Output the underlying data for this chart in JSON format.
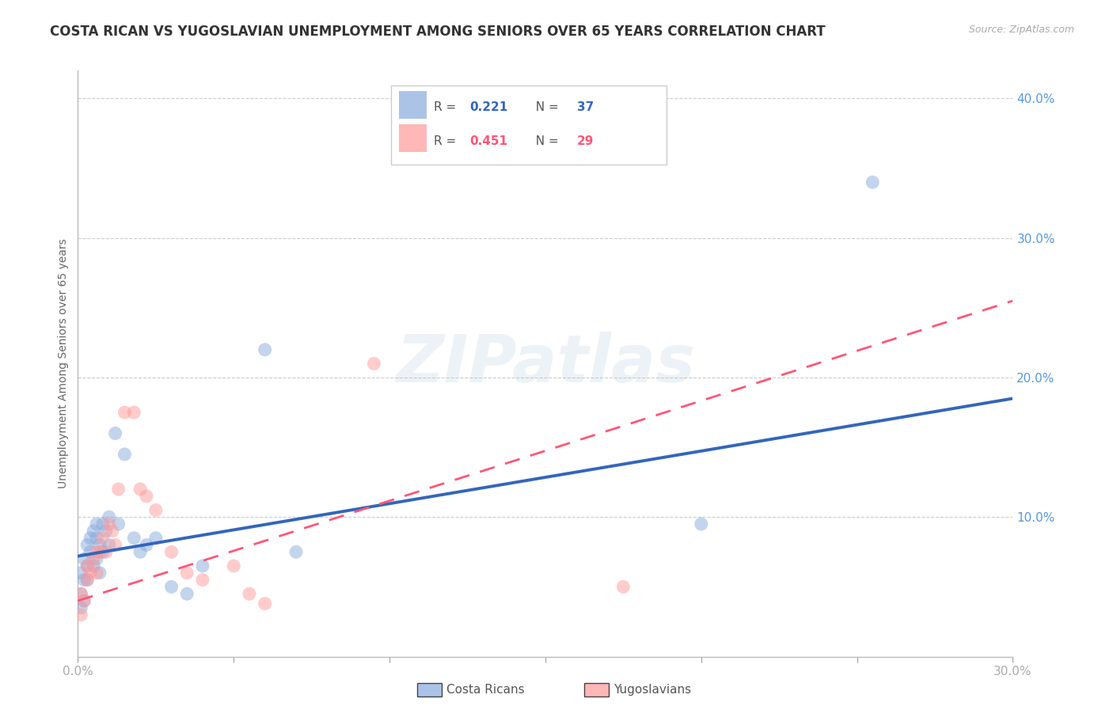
{
  "title": "COSTA RICAN VS YUGOSLAVIAN UNEMPLOYMENT AMONG SENIORS OVER 65 YEARS CORRELATION CHART",
  "source": "Source: ZipAtlas.com",
  "ylabel": "Unemployment Among Seniors over 65 years",
  "xlim": [
    0.0,
    0.3
  ],
  "ylim": [
    0.0,
    0.42
  ],
  "xticks": [
    0.0,
    0.05,
    0.1,
    0.15,
    0.2,
    0.25,
    0.3
  ],
  "yticks": [
    0.0,
    0.1,
    0.2,
    0.3,
    0.4
  ],
  "xtick_labels": [
    "0.0%",
    "",
    "",
    "",
    "",
    "",
    "30.0%"
  ],
  "ytick_labels": [
    "",
    "10.0%",
    "20.0%",
    "30.0%",
    "40.0%"
  ],
  "costa_color": "#88AADD",
  "yugo_color": "#FF9999",
  "trend_costa_color": "#3366BB",
  "trend_yugo_color": "#FF5577",
  "r_costa": "0.221",
  "n_costa": "37",
  "r_yugo": "0.451",
  "n_yugo": "29",
  "costa_ricans_label": "Costa Ricans",
  "yugoslavians_label": "Yugoslavians",
  "costa_x": [
    0.001,
    0.001,
    0.001,
    0.002,
    0.002,
    0.002,
    0.003,
    0.003,
    0.003,
    0.004,
    0.004,
    0.005,
    0.005,
    0.006,
    0.006,
    0.006,
    0.007,
    0.007,
    0.008,
    0.008,
    0.009,
    0.01,
    0.01,
    0.012,
    0.013,
    0.015,
    0.018,
    0.02,
    0.022,
    0.025,
    0.03,
    0.035,
    0.04,
    0.06,
    0.07,
    0.2,
    0.255
  ],
  "costa_y": [
    0.035,
    0.045,
    0.06,
    0.04,
    0.055,
    0.07,
    0.055,
    0.065,
    0.08,
    0.075,
    0.085,
    0.065,
    0.09,
    0.07,
    0.085,
    0.095,
    0.06,
    0.08,
    0.075,
    0.095,
    0.09,
    0.08,
    0.1,
    0.16,
    0.095,
    0.145,
    0.085,
    0.075,
    0.08,
    0.085,
    0.05,
    0.045,
    0.065,
    0.22,
    0.075,
    0.095,
    0.34
  ],
  "yugo_x": [
    0.001,
    0.001,
    0.002,
    0.003,
    0.003,
    0.004,
    0.005,
    0.006,
    0.006,
    0.007,
    0.008,
    0.009,
    0.01,
    0.011,
    0.012,
    0.013,
    0.015,
    0.018,
    0.02,
    0.022,
    0.025,
    0.03,
    0.035,
    0.04,
    0.05,
    0.055,
    0.06,
    0.095,
    0.175
  ],
  "yugo_y": [
    0.03,
    0.045,
    0.04,
    0.055,
    0.065,
    0.06,
    0.07,
    0.06,
    0.075,
    0.075,
    0.085,
    0.075,
    0.095,
    0.09,
    0.08,
    0.12,
    0.175,
    0.175,
    0.12,
    0.115,
    0.105,
    0.075,
    0.06,
    0.055,
    0.065,
    0.045,
    0.038,
    0.21,
    0.05
  ],
  "trend_blue_x0": 0.0,
  "trend_blue_y0": 0.072,
  "trend_blue_x1": 0.3,
  "trend_blue_y1": 0.185,
  "trend_pink_x0": 0.0,
  "trend_pink_y0": 0.04,
  "trend_pink_x1": 0.3,
  "trend_pink_y1": 0.255,
  "watermark": "ZIPatlas",
  "bg_color": "#FFFFFF",
  "grid_color": "#CCCCCC",
  "tick_color": "#5599DD"
}
